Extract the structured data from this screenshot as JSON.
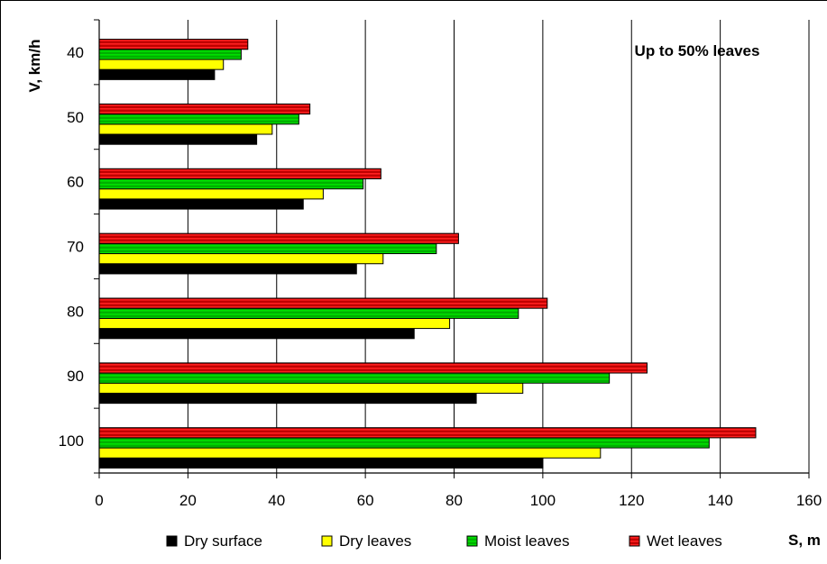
{
  "chart_data": {
    "type": "bar",
    "orientation": "horizontal",
    "annotation": "Up to 50% leaves",
    "xlabel": "S, m",
    "ylabel": "V, km/h",
    "xlim": [
      0,
      160
    ],
    "xticks": [
      0,
      20,
      40,
      60,
      80,
      100,
      120,
      140,
      160
    ],
    "grid": "vertical",
    "legend_position": "bottom",
    "categories": [
      "40",
      "50",
      "60",
      "70",
      "80",
      "90",
      "100"
    ],
    "series": [
      {
        "name": "Dry surface",
        "color": "#000000",
        "pattern": "solid",
        "values": [
          26,
          35.5,
          46,
          58,
          71,
          85,
          100
        ]
      },
      {
        "name": "Dry leaves",
        "color": "#ffff00",
        "pattern": "solid",
        "values": [
          28,
          39,
          50.5,
          64,
          79,
          95.5,
          113
        ]
      },
      {
        "name": "Moist leaves",
        "color": "#00b000",
        "pattern": "striped",
        "values": [
          32,
          45,
          59.5,
          76,
          94.5,
          115,
          137.5
        ]
      },
      {
        "name": "Wet leaves",
        "color": "#cc0000",
        "pattern": "striped",
        "values": [
          33.5,
          47.5,
          63.5,
          81,
          101,
          123.5,
          148
        ]
      }
    ]
  }
}
